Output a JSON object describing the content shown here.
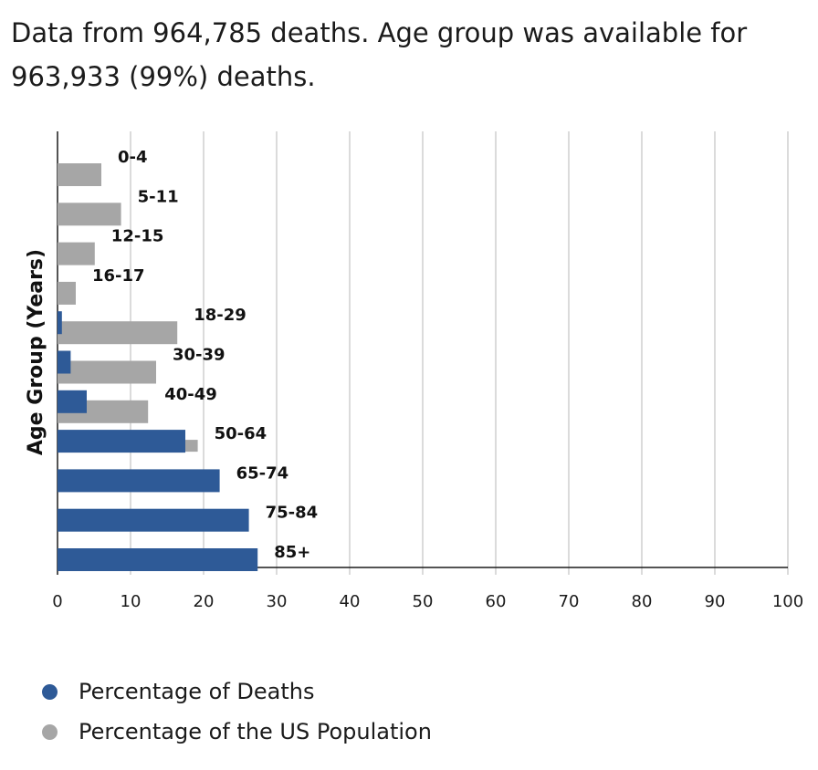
{
  "header": {
    "line1": "Data from 964,785 deaths. Age group was available for",
    "line2": "963,933 (99%) deaths."
  },
  "chart_data": {
    "type": "bar",
    "orientation": "horizontal",
    "ylabel": "Age Group (Years)",
    "xlabel": "",
    "xlim": [
      0,
      100
    ],
    "xticks": [
      0,
      10,
      20,
      30,
      40,
      50,
      60,
      70,
      80,
      90,
      100
    ],
    "grid": true,
    "categories": [
      "0-4",
      "5-11",
      "12-15",
      "16-17",
      "18-29",
      "30-39",
      "40-49",
      "50-64",
      "65-74",
      "75-84",
      "85+"
    ],
    "series": [
      {
        "name": "Percentage of Deaths",
        "color": "#2e5a97",
        "values": [
          0.0,
          0.0,
          0.0,
          0.0,
          0.6,
          1.8,
          4.0,
          17.5,
          22.2,
          26.2,
          27.4
        ]
      },
      {
        "name": "Percentage of the US Population",
        "color": "#a6a6a6",
        "values": [
          6.0,
          8.7,
          5.1,
          2.5,
          16.4,
          13.5,
          12.4,
          19.2,
          9.7,
          4.9,
          2.0
        ]
      }
    ],
    "legend_position": "bottom-left"
  },
  "legend": {
    "items": [
      {
        "label": "Percentage of Deaths",
        "color": "#2e5a97"
      },
      {
        "label": "Percentage of the US Population",
        "color": "#a6a6a6"
      }
    ]
  }
}
